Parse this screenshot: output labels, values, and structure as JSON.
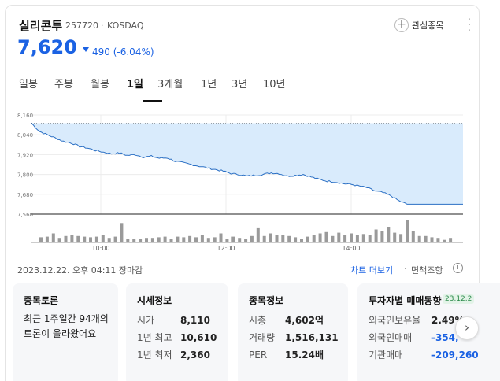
{
  "stock": {
    "name": "실리콘투",
    "code": "257720",
    "market": "KOSDAQ",
    "favorite_label": "관심종목",
    "price": "7,620",
    "change": "490 (-6.04%)",
    "change_color": "#1b62e3"
  },
  "tabs": [
    {
      "label": "일봉"
    },
    {
      "label": "주봉"
    },
    {
      "label": "월봉"
    },
    {
      "label": "1일",
      "active": true
    },
    {
      "label": "3개월"
    },
    {
      "label": "1년"
    },
    {
      "label": "3년"
    },
    {
      "label": "10년"
    }
  ],
  "chart_data": {
    "type": "area",
    "y_ticks": [
      "8,160",
      "8,040",
      "7,920",
      "7,800",
      "7,680",
      "7,560"
    ],
    "ylim": [
      7560,
      8160
    ],
    "x_ticks": [
      "10:00",
      "12:00",
      "14:00"
    ],
    "previous_close": 8110,
    "price_series": [
      8110,
      8060,
      8040,
      8020,
      8000,
      7990,
      7970,
      7960,
      7945,
      7935,
      7925,
      7930,
      7915,
      7920,
      7905,
      7910,
      7898,
      7900,
      7880,
      7870,
      7860,
      7850,
      7840,
      7830,
      7820,
      7805,
      7800,
      7790,
      7795,
      7800,
      7810,
      7805,
      7790,
      7795,
      7800,
      7785,
      7770,
      7760,
      7755,
      7745,
      7740,
      7730,
      7720,
      7700,
      7690,
      7670,
      7640,
      7620,
      7620,
      7620,
      7620,
      7620,
      7620,
      7620,
      7620
    ],
    "volume_series": [
      8,
      9,
      14,
      7,
      10,
      11,
      10,
      9,
      8,
      9,
      12,
      7,
      9,
      30,
      5,
      5,
      6,
      7,
      7,
      8,
      9,
      6,
      9,
      8,
      10,
      8,
      11,
      7,
      8,
      14,
      6,
      9,
      7,
      6,
      10,
      22,
      10,
      14,
      11,
      12,
      10,
      8,
      6,
      9,
      12,
      14,
      16,
      10,
      15,
      11,
      14,
      12,
      13,
      12,
      20,
      18,
      24,
      15,
      13,
      34,
      18,
      10,
      10,
      8,
      7,
      4,
      7
    ],
    "grid": true
  },
  "footer": {
    "timestamp": "2023.12.22. 오후 04:11 장마감",
    "chart_more": "차트 더보기",
    "disclaimer": "면책조항"
  },
  "cards": {
    "discussion": {
      "title": "종목토론",
      "text": "최근 1주일간 94개의 토론이 올라왔어요"
    },
    "market": {
      "title": "시세정보",
      "rows": [
        {
          "label": "시가",
          "value": "8,110"
        },
        {
          "label": "1년 최고",
          "value": "10,610"
        },
        {
          "label": "1년 최저",
          "value": "2,360"
        }
      ]
    },
    "info": {
      "title": "종목정보",
      "rows": [
        {
          "label": "시총",
          "value": "4,602억"
        },
        {
          "label": "거래량",
          "value": "1,516,131"
        },
        {
          "label": "PER",
          "value": "15.24배"
        }
      ]
    },
    "investor": {
      "title": "투자자별 매매동향",
      "date_badge": "23.12.2",
      "rows": [
        {
          "label": "외국인보유율",
          "value": "2.49%"
        },
        {
          "label": "외국인매매",
          "value": "-354,"
        },
        {
          "label": "기관매매",
          "value": "-209,260"
        }
      ]
    }
  }
}
